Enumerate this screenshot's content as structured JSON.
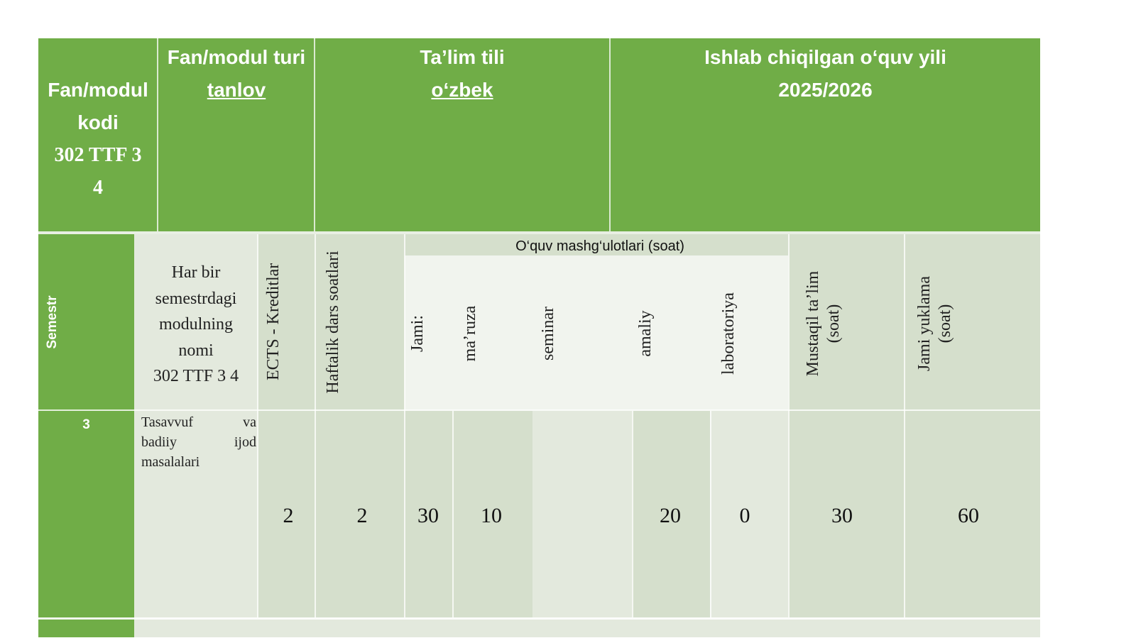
{
  "header": {
    "code_label": "Fan/modul kodi",
    "code_value_line1": "302 TTF 3",
    "code_value_line2": "4",
    "type_label": "Fan/modul turi",
    "type_value": "tanlov",
    "lang_label": "Ta’lim tili",
    "lang_value": "o‘zbek",
    "year_label": "Ishlab chiqilgan o‘quv yili",
    "year_value": "2025/2026"
  },
  "columns": {
    "semester": "Semestr",
    "module_name_l1": "Har bir",
    "module_name_l2": "semestrdagi",
    "module_name_l3": "modulning",
    "module_name_l4": "nomi",
    "module_name_l5": "302 TTF 3 4",
    "ects": "ECTS - Kreditlar",
    "weekly": "Haftalik dars soatlari",
    "classes_group": "O‘quv mashg‘ulotlari (soat)",
    "total": "Jami:",
    "lecture": "ma’ruza",
    "seminar": "seminar",
    "practical": "amaliy",
    "lab": "laboratoriya",
    "independent_l1": "Mustaqil ta’lim",
    "independent_l2": "(soat)",
    "total_load_l1": "Jami yuklama",
    "total_load_l2": "(soat)"
  },
  "row": {
    "semester": "3",
    "module_name_l1_left": "Tasavvuf",
    "module_name_l1_right": "va",
    "module_name_l2_left": "badiiy",
    "module_name_l2_right": "ijod",
    "module_name_l3": "masalalari",
    "ects": "2",
    "weekly": "2",
    "total": "30",
    "lecture": "10",
    "seminar": "",
    "practical": "20",
    "lab": "0",
    "independent": "30",
    "total_load": "60"
  },
  "colors": {
    "header_green": "#70ad47",
    "light_green_1": "#d5dfcc",
    "light_green_2": "#e3e9dd",
    "light_green_3": "#f1f4ee"
  }
}
